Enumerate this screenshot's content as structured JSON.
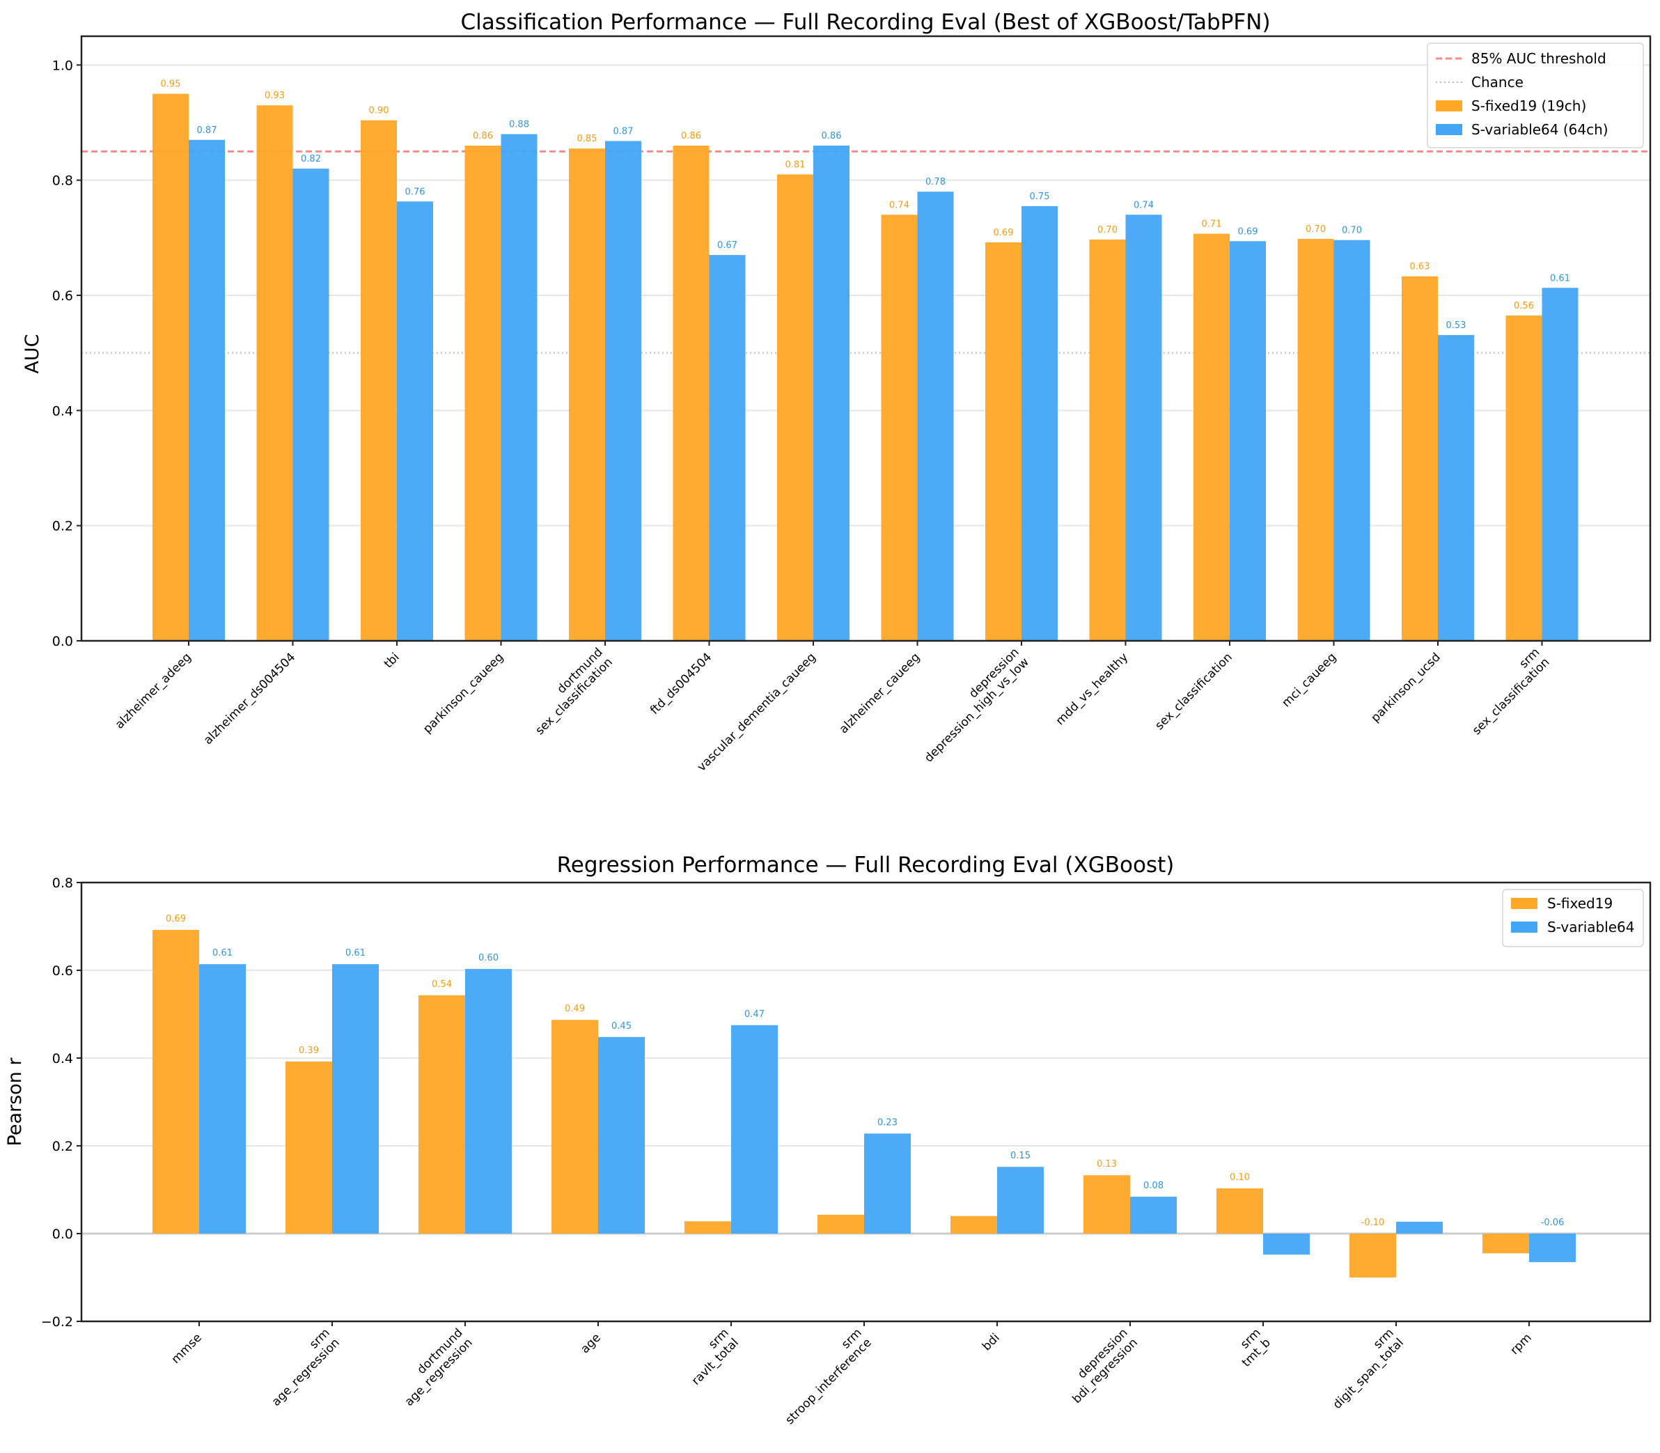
{
  "colors": {
    "fixed": "#FFA726",
    "variable": "#42A5F5",
    "fixed_label": "#F39C12",
    "variable_label": "#2E95E0",
    "threshold": "#FF6B6B",
    "chance": "#BBBBBB",
    "grid": "#E5E5E5"
  },
  "chart_data": [
    {
      "type": "bar",
      "title": "Classification Performance — Full Recording Eval (Best of XGBoost/TabPFN)",
      "xlabel": "",
      "ylabel": "AUC",
      "ylim": [
        0.0,
        1.05
      ],
      "yticks": [
        0.0,
        0.2,
        0.4,
        0.6,
        0.8,
        1.0
      ],
      "ytick_labels": [
        "0.0",
        "0.2",
        "0.4",
        "0.6",
        "0.8",
        "1.0"
      ],
      "grid": "y",
      "legend_position": "top-right",
      "categories": [
        [
          "alzheimer_adeeg"
        ],
        [
          "alzheimer_ds004504"
        ],
        [
          "tbi"
        ],
        [
          "parkinson_caueeg"
        ],
        [
          "dortmund",
          "sex_classification"
        ],
        [
          "ftd_ds004504"
        ],
        [
          "vascular_dementia_caueeg"
        ],
        [
          "alzheimer_caueeg"
        ],
        [
          "depression",
          "depression_high_vs_low"
        ],
        [
          "mdd_vs_healthy"
        ],
        [
          "sex_classification"
        ],
        [
          "mci_caueeg"
        ],
        [
          "parkinson_ucsd"
        ],
        [
          "srm",
          "sex_classification"
        ]
      ],
      "series": [
        {
          "name": "S-fixed19 (19ch)",
          "values": [
            0.95,
            0.93,
            0.904,
            0.86,
            0.855,
            0.86,
            0.81,
            0.74,
            0.692,
            0.697,
            0.707,
            0.698,
            0.633,
            0.565
          ],
          "labels": [
            "0.95",
            "0.93",
            "0.90",
            "0.86",
            "0.85",
            "0.86",
            "0.81",
            "0.74",
            "0.69",
            "0.70",
            "0.71",
            "0.70",
            "0.63",
            "0.56"
          ]
        },
        {
          "name": "S-variable64 (64ch)",
          "values": [
            0.87,
            0.82,
            0.763,
            0.88,
            0.868,
            0.67,
            0.86,
            0.78,
            0.755,
            0.74,
            0.694,
            0.696,
            0.531,
            0.613
          ],
          "labels": [
            "0.87",
            "0.82",
            "0.76",
            "0.88",
            "0.87",
            "0.67",
            "0.86",
            "0.78",
            "0.75",
            "0.74",
            "0.69",
            "0.70",
            "0.53",
            "0.61"
          ]
        }
      ],
      "reference_lines": [
        {
          "name": "85% AUC threshold",
          "y": 0.85,
          "style": "dashed"
        },
        {
          "name": "Chance",
          "y": 0.5,
          "style": "dotted"
        }
      ],
      "legend": [
        "85% AUC threshold",
        "Chance",
        "S-fixed19 (19ch)",
        "S-variable64 (64ch)"
      ]
    },
    {
      "type": "bar",
      "title": "Regression Performance — Full Recording Eval (XGBoost)",
      "xlabel": "",
      "ylabel": "Pearson r",
      "ylim": [
        -0.2,
        0.8
      ],
      "yticks": [
        -0.2,
        0.0,
        0.2,
        0.4,
        0.6,
        0.8
      ],
      "ytick_labels": [
        "−0.2",
        "0.0",
        "0.2",
        "0.4",
        "0.6",
        "0.8"
      ],
      "grid": "y",
      "legend_position": "top-right",
      "categories": [
        [
          "mmse"
        ],
        [
          "srm",
          "age_regression"
        ],
        [
          "dortmund",
          "age_regression"
        ],
        [
          "age"
        ],
        [
          "srm",
          "ravlt_total"
        ],
        [
          "srm",
          "stroop_interference"
        ],
        [
          "bdi"
        ],
        [
          "depression",
          "bdi_regression"
        ],
        [
          "srm",
          "tmt_b"
        ],
        [
          "srm",
          "digit_span_total"
        ],
        [
          "rpm"
        ]
      ],
      "series": [
        {
          "name": "S-fixed19",
          "values": [
            0.692,
            0.392,
            0.543,
            0.487,
            0.028,
            0.043,
            0.04,
            0.133,
            0.103,
            -0.1,
            -0.045
          ],
          "labels": [
            "0.69",
            "0.39",
            "0.54",
            "0.49",
            null,
            null,
            null,
            "0.13",
            "0.10",
            "-0.10",
            null
          ]
        },
        {
          "name": "S-variable64",
          "values": [
            0.614,
            0.614,
            0.603,
            0.448,
            0.475,
            0.228,
            0.152,
            0.084,
            -0.048,
            0.027,
            -0.065
          ],
          "labels": [
            "0.61",
            "0.61",
            "0.60",
            "0.45",
            "0.47",
            "0.23",
            "0.15",
            "0.08",
            null,
            null,
            "-0.06"
          ]
        }
      ],
      "reference_lines": [
        {
          "name": "zero",
          "y": 0.0,
          "style": "solid"
        }
      ],
      "legend": [
        "S-fixed19",
        "S-variable64"
      ]
    }
  ]
}
